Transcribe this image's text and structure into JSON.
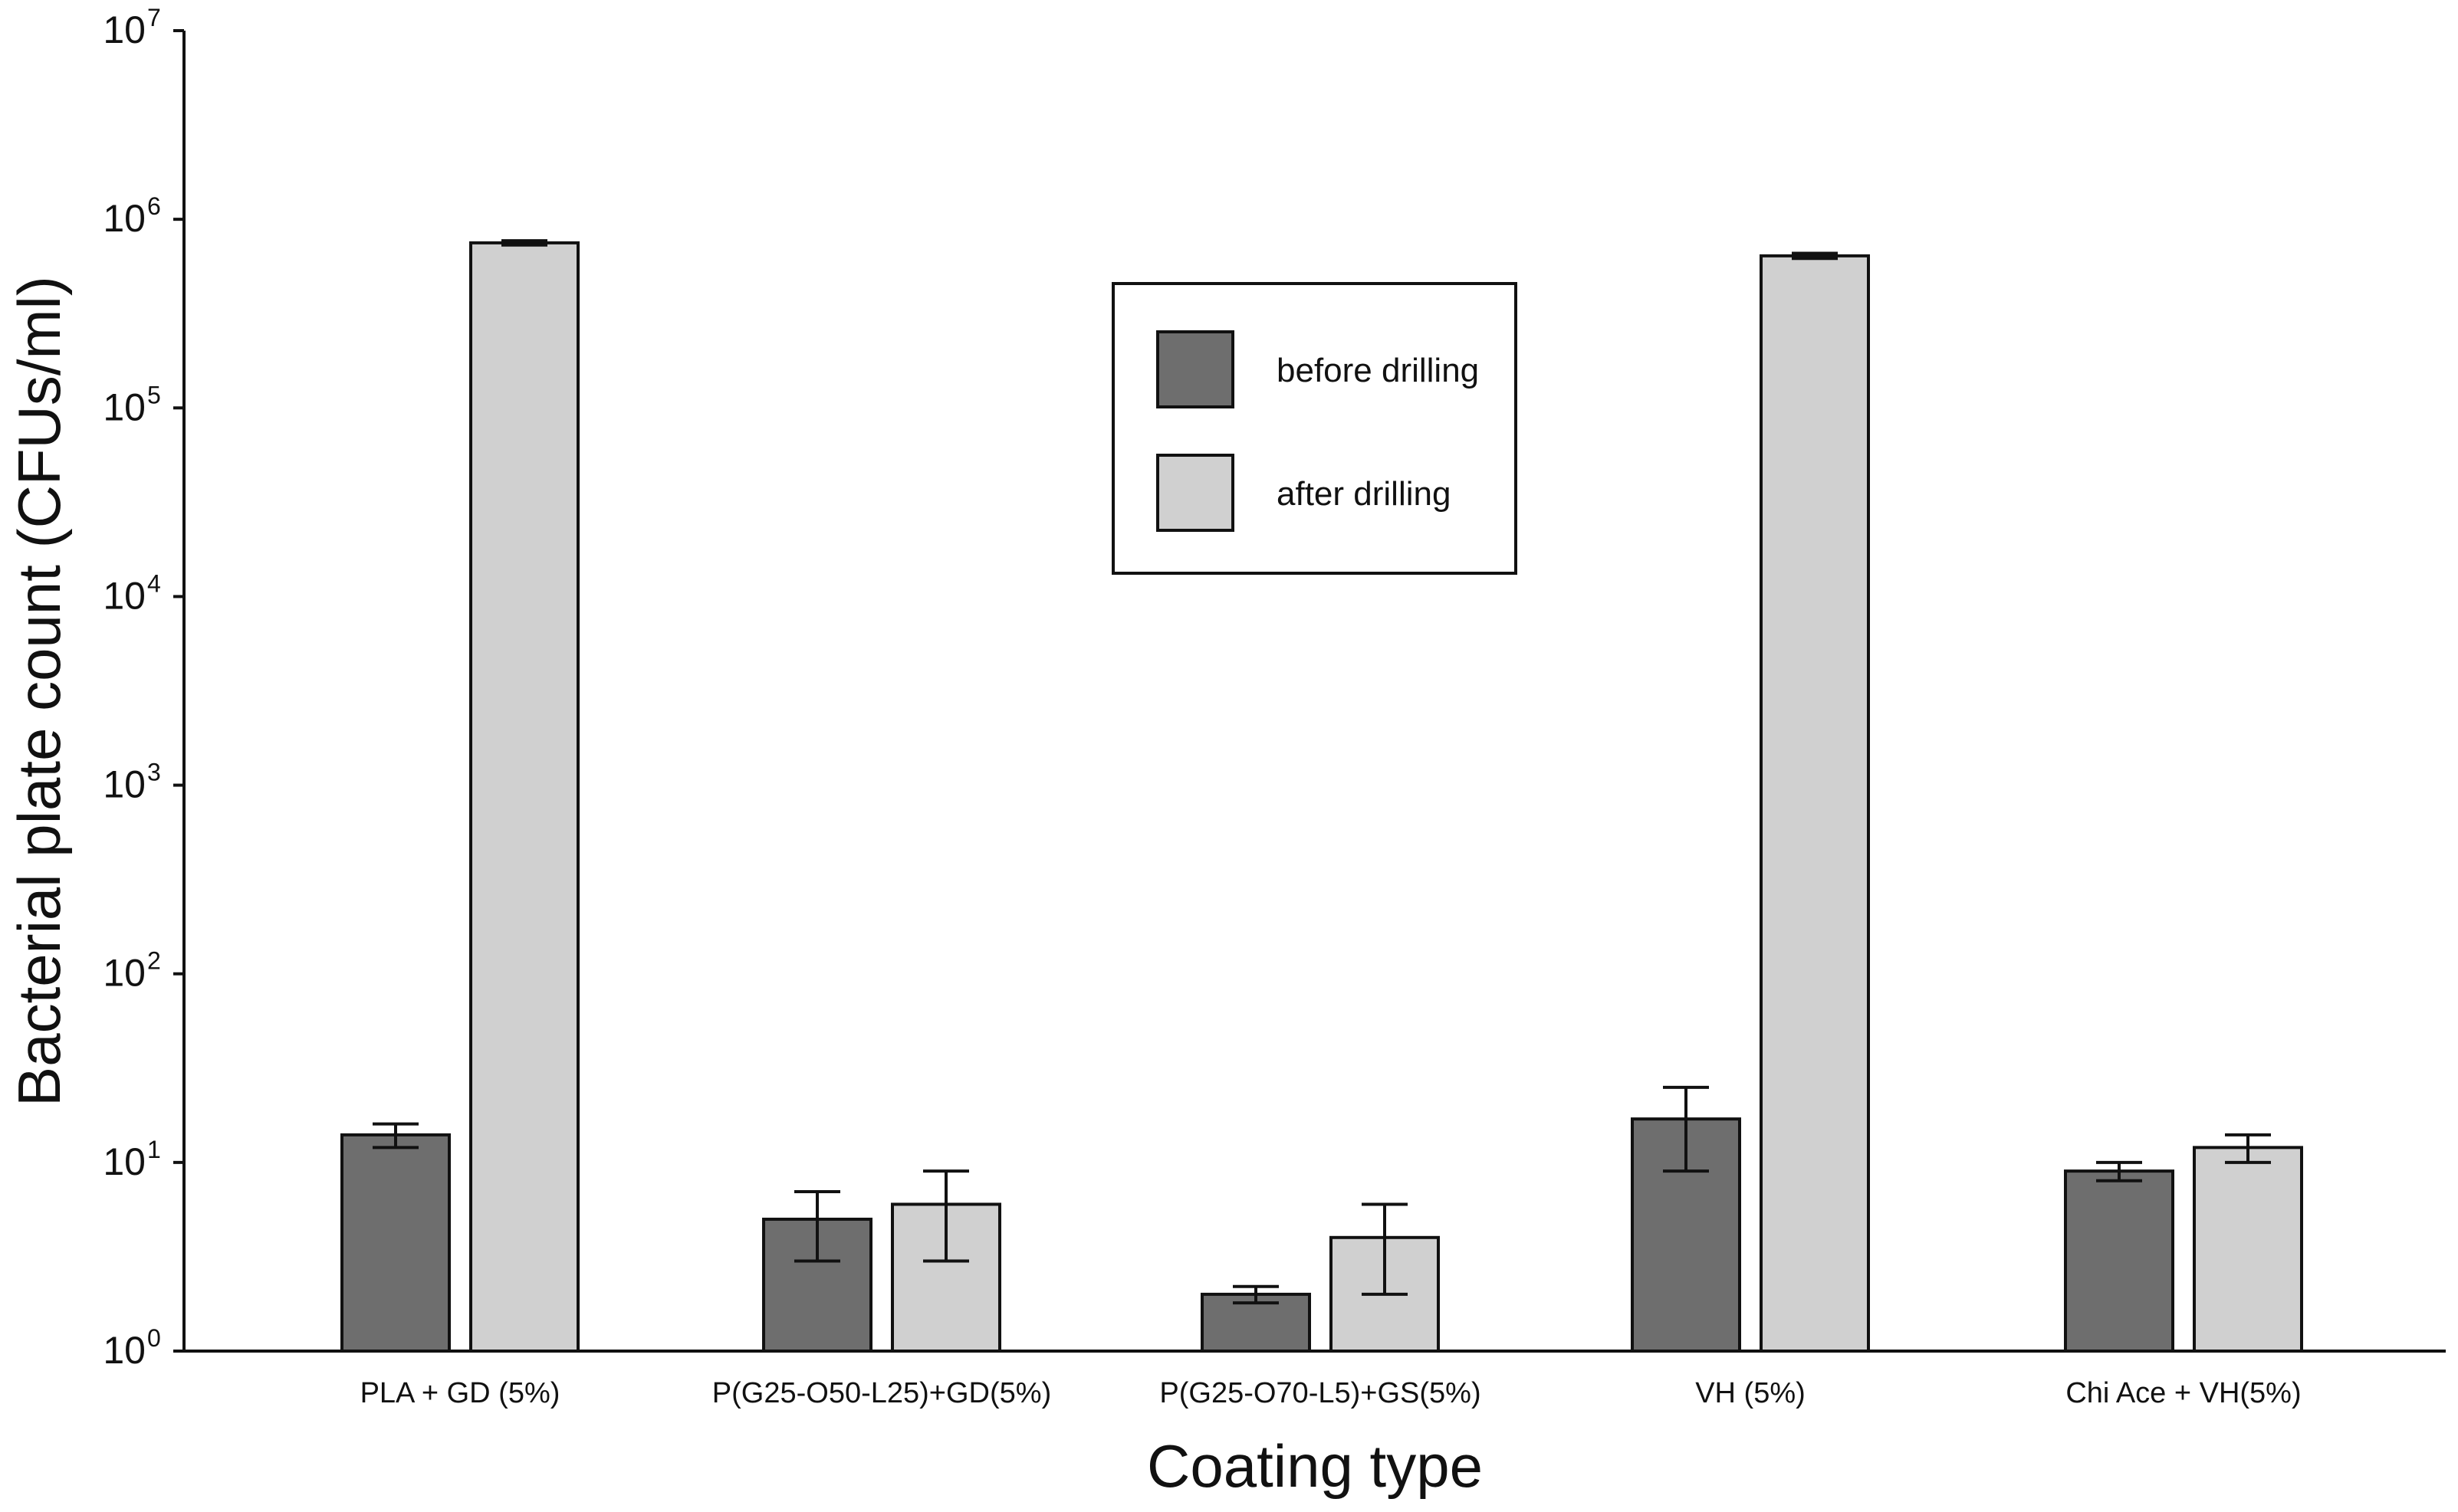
{
  "chart_data": {
    "type": "bar",
    "scale": "log10",
    "xlabel": "Coating type",
    "ylabel": "Bacterial plate count (CFUs/ml)",
    "ylim": [
      1,
      10000000
    ],
    "yticks": [
      {
        "base": "10",
        "exp": "0"
      },
      {
        "base": "10",
        "exp": "1"
      },
      {
        "base": "10",
        "exp": "2"
      },
      {
        "base": "10",
        "exp": "3"
      },
      {
        "base": "10",
        "exp": "4"
      },
      {
        "base": "10",
        "exp": "5"
      },
      {
        "base": "10",
        "exp": "6"
      },
      {
        "base": "10",
        "exp": "7"
      }
    ],
    "categories": [
      "PLA + GD (5%)",
      "P(G25-O50-L25)+GD(5%)",
      "P(G25-O70-L5)+GS(5%)",
      "VH (5%)",
      "Chi Ace + VH(5%)"
    ],
    "series": [
      {
        "name": "before drilling",
        "color": "#6e6e6e",
        "values": [
          14,
          5,
          2,
          17,
          9
        ],
        "err_low": [
          12,
          3,
          1.8,
          9,
          8
        ],
        "err_high": [
          16,
          7,
          2.2,
          25,
          10
        ]
      },
      {
        "name": "after drilling",
        "color": "#d0d0d0",
        "values": [
          750000,
          6,
          4,
          640000,
          12
        ],
        "err_low": [
          730000,
          3,
          2,
          620000,
          10
        ],
        "err_high": [
          770000,
          9,
          6,
          660000,
          14
        ]
      }
    ],
    "legend": {
      "position": "top-center",
      "entries": [
        "before drilling",
        "after drilling"
      ]
    },
    "grid": false
  }
}
